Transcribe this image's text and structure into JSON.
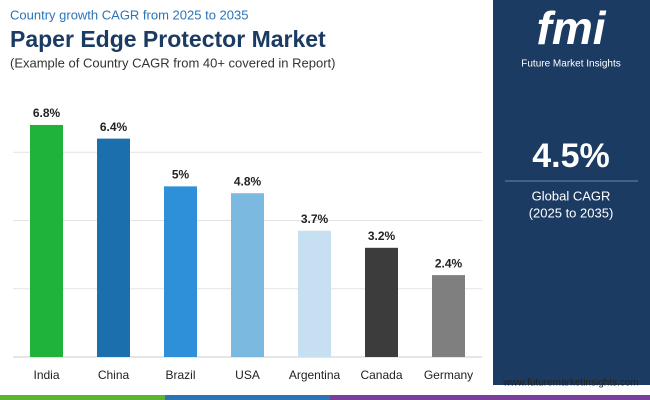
{
  "header": {
    "kicker": "Country growth CAGR from 2025 to 2035",
    "title": "Paper Edge Protector Market",
    "subtitle": "(Example of Country CAGR from 40+ covered in Report)"
  },
  "panel": {
    "logo": "fmi",
    "brand": "Future Market Insights",
    "headline": "4.5%",
    "caption": "Global CAGR",
    "period": "(2025 to 2035)",
    "website": "www.futuremarketinsights.com"
  },
  "chart_data": {
    "type": "bar",
    "categories": [
      "India",
      "China",
      "Brazil",
      "USA",
      "Argentina",
      "Canada",
      "Germany"
    ],
    "values": [
      6.8,
      6.4,
      5,
      4.8,
      3.7,
      3.2,
      2.4
    ],
    "value_labels": [
      "6.8%",
      "6.4%",
      "5%",
      "4.8%",
      "3.7%",
      "3.2%",
      "2.4%"
    ],
    "colors": [
      "#1fb33b",
      "#1b6fad",
      "#2e90d8",
      "#7cb9e1",
      "#c6e0f2",
      "#3c3c3c",
      "#7f7f7f"
    ],
    "ylim": [
      0,
      8
    ],
    "yticks": [
      2,
      4,
      6
    ],
    "grid": true
  }
}
